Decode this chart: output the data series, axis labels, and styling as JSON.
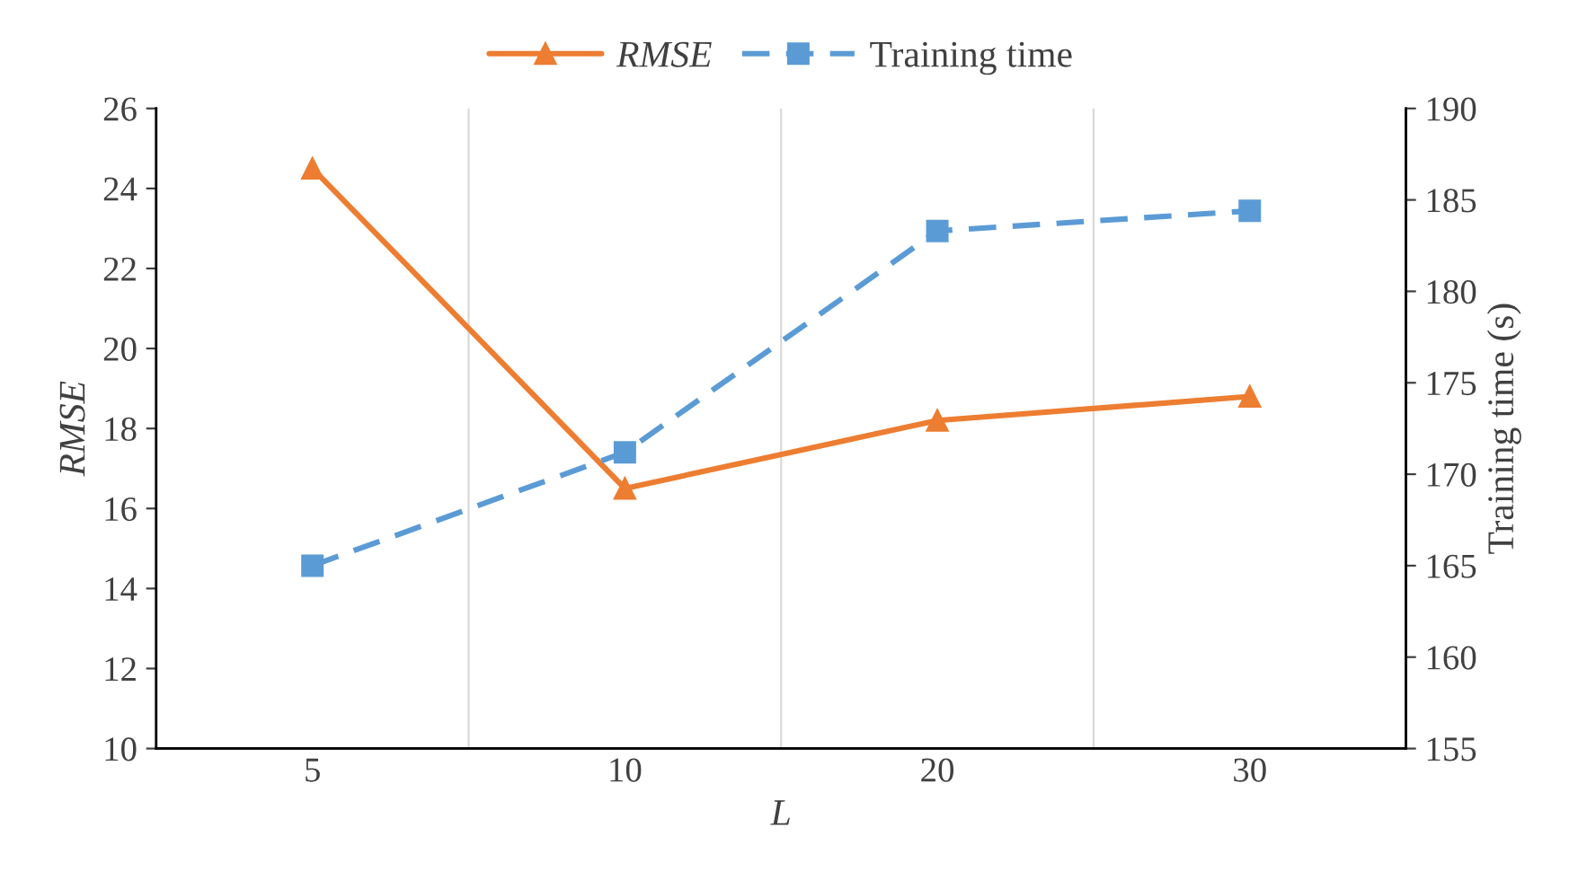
{
  "chart_data": {
    "type": "line",
    "xlabel": "L",
    "ylabel": "RMSE",
    "y2label": "Training time (s)",
    "categories": [
      "5",
      "10",
      "20",
      "30"
    ],
    "series": [
      {
        "name": "RMSE",
        "color": "#ed7d31",
        "values": [
          24.5,
          16.5,
          18.2,
          18.8
        ],
        "marker": "triangle",
        "line_style": "solid"
      },
      {
        "name": "Training time",
        "color": "#5b9bd5",
        "values": [
          165.0,
          171.2,
          183.3,
          184.4
        ],
        "axis": "y2",
        "marker": "square",
        "line_style": "dashed"
      }
    ],
    "ylim": [
      10,
      26
    ],
    "yticks": [
      10,
      12,
      14,
      16,
      18,
      20,
      22,
      24,
      26
    ],
    "y2lim": [
      155,
      190
    ],
    "y2ticks": [
      155,
      160,
      165,
      170,
      175,
      180,
      185,
      190
    ],
    "grid": "x",
    "legend": "top"
  }
}
